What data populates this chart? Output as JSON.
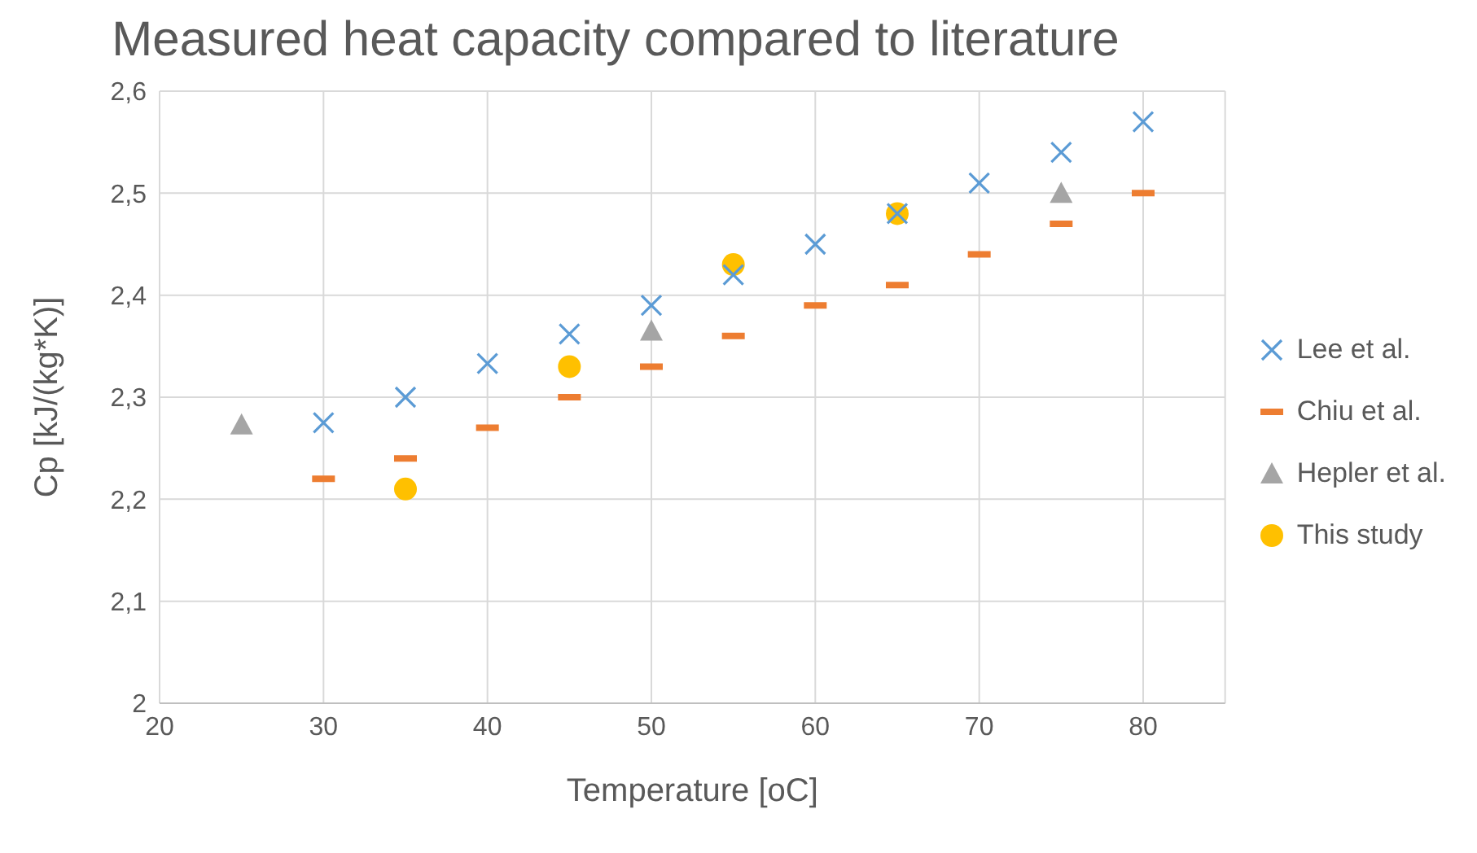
{
  "chart_data": {
    "type": "scatter",
    "title": "Measured heat capacity compared to literature",
    "xlabel": "Temperature [oC]",
    "ylabel": "Cp [kJ/(kg*K)]",
    "xlim": [
      20,
      85
    ],
    "xticks": [
      20,
      30,
      40,
      50,
      60,
      70,
      80
    ],
    "ylim": [
      2,
      2.6
    ],
    "yticks": [
      2,
      {
        "value": 2.1,
        "label": "2,1"
      },
      {
        "value": 2.2,
        "label": "2,2"
      },
      {
        "value": 2.3,
        "label": "2,3"
      },
      {
        "value": 2.4,
        "label": "2,4"
      },
      {
        "value": 2.5,
        "label": "2,5"
      },
      {
        "value": 2.6,
        "label": "2,6"
      }
    ],
    "grid": true,
    "legend": "right",
    "series": [
      {
        "name": "Lee et al.",
        "color": "#5b9bd5",
        "marker": "cross",
        "x": [
          30,
          35,
          40,
          45,
          50,
          55,
          60,
          65,
          70,
          75,
          80
        ],
        "values": [
          2.275,
          2.3,
          2.333,
          2.362,
          2.39,
          2.42,
          2.45,
          2.48,
          2.51,
          2.54,
          2.57
        ]
      },
      {
        "name": "Chiu et al.",
        "color": "#ed7d31",
        "marker": "none",
        "x": [
          30,
          35,
          40,
          45,
          50,
          55,
          60,
          65,
          70,
          75,
          80
        ],
        "values": [
          2.22,
          2.24,
          2.27,
          2.3,
          2.33,
          2.36,
          2.39,
          2.41,
          2.44,
          2.47,
          2.5
        ]
      },
      {
        "name": "Hepler et al.",
        "color": "#a5a5a5",
        "marker": "triangle",
        "x": [
          25,
          50,
          75
        ],
        "values": [
          2.273,
          2.365,
          2.5
        ]
      },
      {
        "name": "This study",
        "color": "#ffc000",
        "marker": "circle",
        "x": [
          35,
          45,
          55,
          65
        ],
        "values": [
          2.21,
          2.33,
          2.43,
          2.48
        ]
      }
    ]
  }
}
